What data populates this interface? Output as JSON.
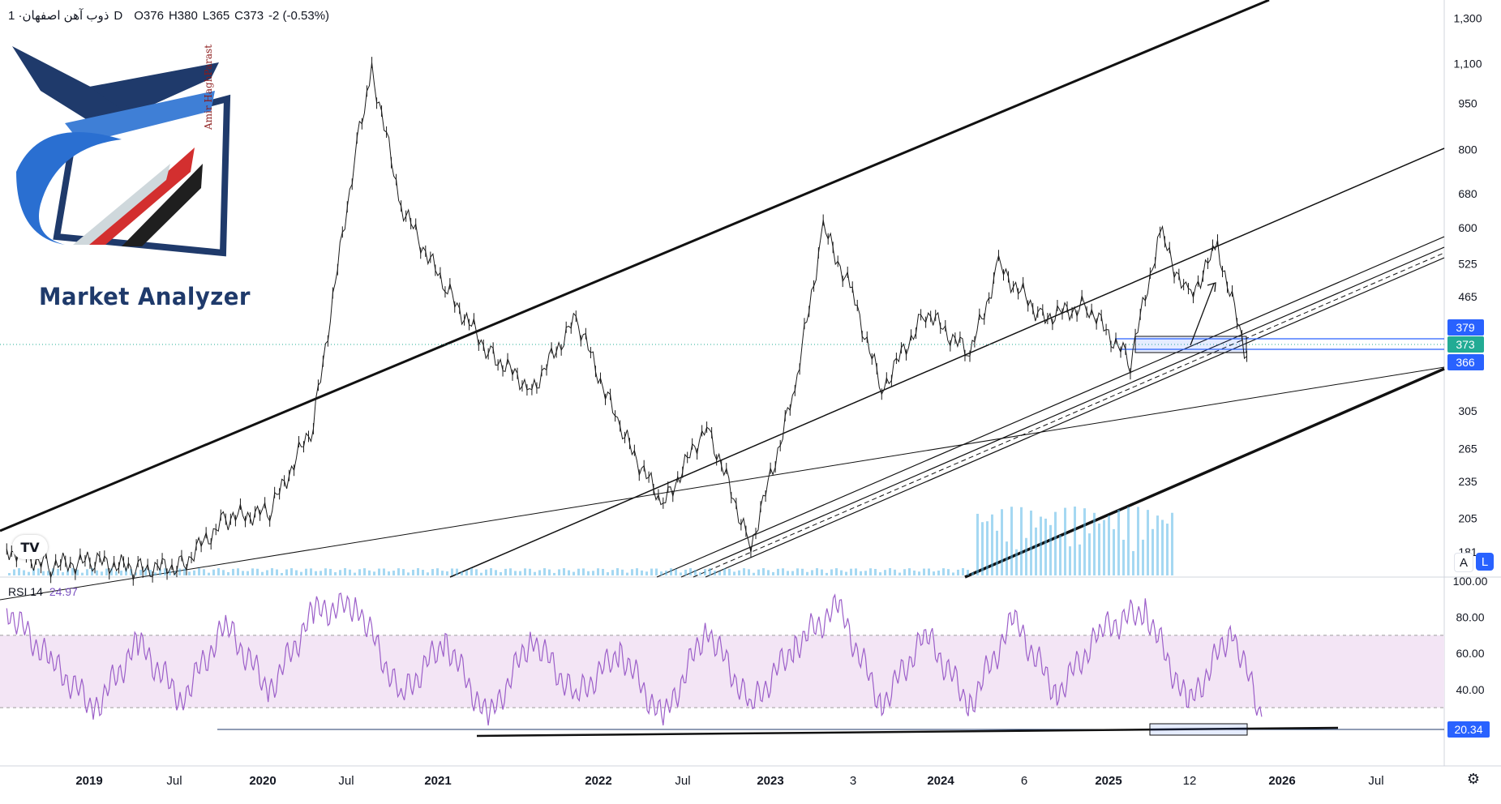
{
  "header": {
    "symbol": "ذوب آهن اصفهان",
    "timeframe": "· 1D",
    "open": "O376",
    "high": "H380",
    "low": "L365",
    "close": "C373",
    "change": "-2 (-0.53%)"
  },
  "logo": {
    "title": "Market Analyzer",
    "author": "Amir HaghParast"
  },
  "rsi": {
    "label": "RSI 14",
    "value": "24.97"
  },
  "price_axis": {
    "ticks": [
      "1,300",
      "1,100",
      "950",
      "800",
      "680",
      "600",
      "525",
      "465",
      "379",
      "373",
      "366",
      "305",
      "265",
      "235",
      "205",
      "181"
    ],
    "badges": [
      {
        "label": "379",
        "color": "#2962ff"
      },
      {
        "label": "373",
        "color": "#22ab94"
      },
      {
        "label": "366",
        "color": "#2962ff"
      }
    ]
  },
  "rsi_axis": {
    "ticks": [
      "100.00",
      "80.00",
      "60.00",
      "40.00"
    ],
    "badge": {
      "label": "20.34",
      "color": "#2962ff"
    }
  },
  "time_axis": {
    "labels": [
      "2019",
      "Jul",
      "2020",
      "Jul",
      "2021",
      "2022",
      "Jul",
      "2023",
      "3",
      "2024",
      "6",
      "2025",
      "12",
      "2026",
      "Jul"
    ],
    "bold": [
      true,
      false,
      true,
      false,
      true,
      true,
      false,
      true,
      false,
      true,
      false,
      true,
      false,
      true,
      false
    ]
  },
  "buttons": {
    "scale_auto": "A",
    "scale_log": "L",
    "tv_logo": "TV"
  },
  "colors": {
    "candle": "#1a1a1a",
    "rsi_line": "#9c5fc9",
    "rsi_band": "#f3e5f5",
    "volume": "#5bb8e8",
    "badge_blue": "#2962ff",
    "badge_green": "#22ab94"
  },
  "chart_data": [
    {
      "type": "line",
      "title": "ذوب آهن اصفهان · 1D",
      "yscale": "log",
      "ylim": [
        170,
        1350
      ],
      "x": [
        "2018-07",
        "2018-10",
        "2019-01",
        "2019-04",
        "2019-07",
        "2019-10",
        "2020-01",
        "2020-04",
        "2020-07",
        "2020-08",
        "2020-10",
        "2021-01",
        "2021-04",
        "2021-07",
        "2021-10",
        "2022-01",
        "2022-04",
        "2022-07",
        "2022-10",
        "2023-01",
        "2023-03",
        "2023-05",
        "2023-07",
        "2023-10",
        "2024-01",
        "2024-03",
        "2024-06",
        "2024-09",
        "2024-12",
        "2025-02",
        "2025-04",
        "2025-06",
        "2025-08"
      ],
      "series": [
        {
          "values": [
            183,
            172,
            175,
            170,
            172,
            205,
            210,
            290,
            820,
            1080,
            650,
            480,
            380,
            330,
            430,
            285,
            215,
            290,
            185,
            330,
            600,
            470,
            330,
            440,
            375,
            520,
            430,
            450,
            365,
            590,
            460,
            560,
            373
          ]
        }
      ],
      "annotations": [
        "379",
        "373",
        "366"
      ]
    },
    {
      "type": "line",
      "title": "RSI 14",
      "ylim": [
        0,
        100
      ],
      "x": [
        "2018-07",
        "2018-10",
        "2019-01",
        "2019-04",
        "2019-07",
        "2019-10",
        "2020-01",
        "2020-04",
        "2020-07",
        "2020-10",
        "2021-01",
        "2021-04",
        "2021-07",
        "2021-10",
        "2022-01",
        "2022-04",
        "2022-07",
        "2022-10",
        "2023-01",
        "2023-04",
        "2023-07",
        "2023-10",
        "2024-01",
        "2024-04",
        "2024-07",
        "2024-10",
        "2025-01",
        "2025-04",
        "2025-07",
        "2025-09"
      ],
      "series": [
        {
          "values": [
            85,
            55,
            30,
            65,
            35,
            75,
            40,
            82,
            88,
            35,
            68,
            22,
            70,
            35,
            62,
            22,
            75,
            30,
            65,
            85,
            32,
            70,
            32,
            78,
            38,
            72,
            85,
            30,
            74,
            24.97
          ]
        }
      ],
      "levels": [
        70,
        30
      ],
      "annotations": [
        "20.34"
      ]
    }
  ]
}
